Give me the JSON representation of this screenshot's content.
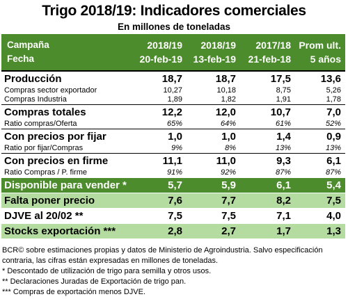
{
  "title": "Trigo 2018/19: Indicadores comerciales",
  "subtitle": "En millones de toneladas",
  "header": {
    "row1": [
      "Campaña",
      "2018/19",
      "2018/19",
      "2017/18",
      "Prom ult."
    ],
    "row2": [
      "Fecha",
      "20-feb-19",
      "13-feb-19",
      "21-feb-18",
      "5 años"
    ]
  },
  "rows": {
    "produccion": [
      "Producción",
      "18,7",
      "18,7",
      "17,5",
      "13,6"
    ],
    "compras_exportador": [
      "Compras sector exportador",
      "10,27",
      "10,18",
      "8,75",
      "5,26"
    ],
    "compras_industria": [
      "Compras Industria",
      "1,89",
      "1,82",
      "1,91",
      "1,78"
    ],
    "compras_totales": [
      "Compras totales",
      "12,2",
      "12,0",
      "10,7",
      "7,0"
    ],
    "ratio_compras_oferta": [
      "Ratio compras/Oferta",
      "65%",
      "64%",
      "61%",
      "52%"
    ],
    "con_precios_por_fijar": [
      "Con precios por fijar",
      "1,0",
      "1,0",
      "1,4",
      "0,9"
    ],
    "ratio_fijar_compras": [
      "Ratio por fijar/Compras",
      "9%",
      "8%",
      "13%",
      "13%"
    ],
    "con_precios_en_firme": [
      "Con precios en firme",
      "11,1",
      "11,0",
      "9,3",
      "6,1"
    ],
    "ratio_compras_pfirm": [
      "Ratio Compras / P. firme",
      "91%",
      "92%",
      "87%",
      "87%"
    ],
    "disponible": [
      "Disponible para vender *",
      "5,7",
      "5,9",
      "6,1",
      "5,4"
    ],
    "falta_precio": [
      "Falta poner precio",
      "7,6",
      "7,7",
      "8,2",
      "7,5"
    ],
    "djve": [
      "DJVE al 20/02 **",
      "7,5",
      "7,5",
      "7,1",
      "4,0"
    ],
    "stocks": [
      "Stocks exportación ***",
      "2,8",
      "2,7",
      "1,7",
      "1,3"
    ]
  },
  "notes": [
    "BCR© sobre estimaciones propias y datos de Ministerio de Agroindustria. Salvo especificación",
    "contraria, las cifras están expresadas en millones de toneladas.",
    "* Descontado de utilización de trigo para semilla y otros usos.",
    "** Declaraciones Juradas de Exportación de trigo pan.",
    "*** Compras de exportación menos DJVE."
  ],
  "colors": {
    "dark_green": "#4c8c2c",
    "light_green": "#b4dca0"
  }
}
